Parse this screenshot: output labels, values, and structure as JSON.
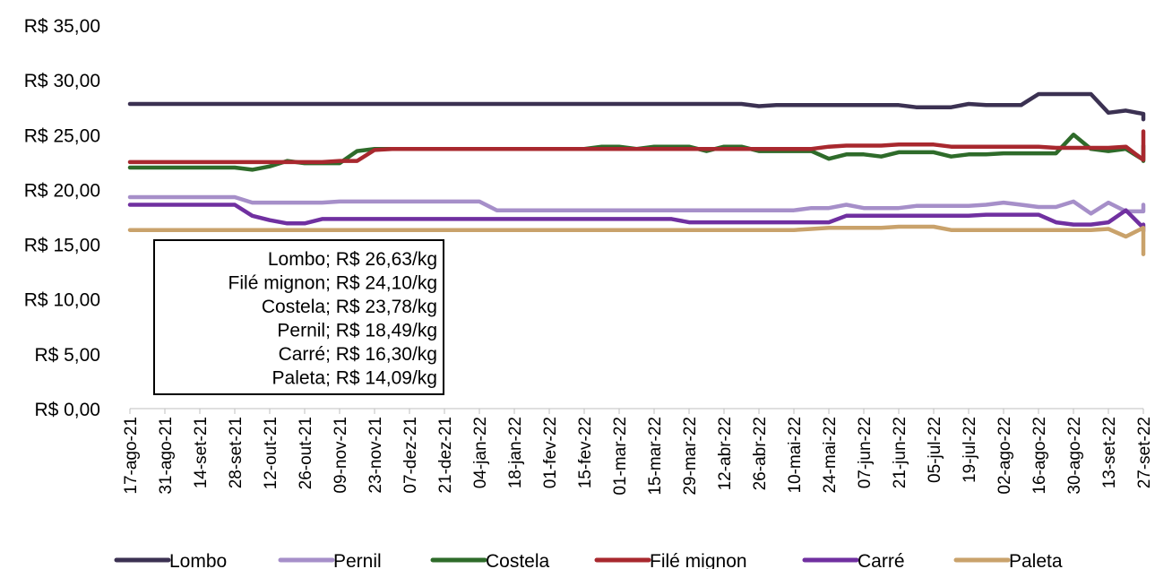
{
  "chart_data": {
    "type": "line",
    "y_format_prefix": "R$ ",
    "ylim": [
      0,
      35
    ],
    "ytick_values": [
      0,
      5,
      10,
      15,
      20,
      25,
      30,
      35
    ],
    "yticks": [
      "R$ 0,00",
      "R$ 5,00",
      "R$ 10,00",
      "R$ 15,00",
      "R$ 20,00",
      "R$ 25,00",
      "R$ 30,00",
      "R$ 35,00"
    ],
    "xtick_labels": [
      "17-ago-21",
      "31-ago-21",
      "14-set-21",
      "28-set-21",
      "12-out-21",
      "26-out-21",
      "09-nov-21",
      "23-nov-21",
      "07-dez-21",
      "21-dez-21",
      "04-jan-22",
      "18-jan-22",
      "01-fev-22",
      "15-fev-22",
      "01-mar-22",
      "15-mar-22",
      "29-mar-22",
      "12-abr-22",
      "26-abr-22",
      "10-mai-22",
      "24-mai-22",
      "07-jun-22",
      "21-jun-22",
      "05-jul-22",
      "19-jul-22",
      "02-ago-22",
      "16-ago-22",
      "30-ago-22",
      "13-set-22",
      "27-set-22"
    ],
    "weeks_per_tick": 2,
    "grid": false,
    "legend_position": "bottom",
    "annotation_lines": [
      "Lombo; R$ 26,63/kg",
      "Filé mignon; R$ 24,10/kg",
      "Costela; R$ 23,78/kg",
      "Pernil; R$ 18,49/kg",
      "Carré; R$ 16,30/kg",
      "Paleta; R$ 14,09/kg"
    ],
    "series": [
      {
        "name": "Lombo",
        "color": "#3B3152",
        "values": [
          27.8,
          27.8,
          27.8,
          27.8,
          27.8,
          27.8,
          27.8,
          27.8,
          27.8,
          27.8,
          27.8,
          27.8,
          27.8,
          27.8,
          27.8,
          27.8,
          27.8,
          27.8,
          27.8,
          27.8,
          27.8,
          27.8,
          27.8,
          27.8,
          27.8,
          27.8,
          27.8,
          27.8,
          27.8,
          27.8,
          27.8,
          27.8,
          27.8,
          27.8,
          27.8,
          27.8,
          27.6,
          27.7,
          27.7,
          27.7,
          27.7,
          27.7,
          27.7,
          27.7,
          27.7,
          27.5,
          27.5,
          27.5,
          27.8,
          27.7,
          27.7,
          27.7,
          28.7,
          28.7,
          28.7,
          28.7,
          27.0,
          27.2,
          26.9,
          26.4,
          26.63
        ]
      },
      {
        "name": "Pernil",
        "color": "#A68FC9",
        "values": [
          19.3,
          19.3,
          19.3,
          19.3,
          19.3,
          19.3,
          19.3,
          18.8,
          18.8,
          18.8,
          18.8,
          18.8,
          18.9,
          18.9,
          18.9,
          18.9,
          18.9,
          18.9,
          18.9,
          18.9,
          18.9,
          18.1,
          18.1,
          18.1,
          18.1,
          18.1,
          18.1,
          18.1,
          18.1,
          18.1,
          18.1,
          18.1,
          18.1,
          18.1,
          18.1,
          18.1,
          18.1,
          18.1,
          18.1,
          18.3,
          18.3,
          18.6,
          18.3,
          18.3,
          18.3,
          18.5,
          18.5,
          18.5,
          18.5,
          18.6,
          18.8,
          18.6,
          18.4,
          18.4,
          18.9,
          17.8,
          18.8,
          18.0,
          18.0,
          18.6,
          18.4,
          18.49
        ]
      },
      {
        "name": "Costela",
        "color": "#2E6B2A",
        "values": [
          22.0,
          22.0,
          22.0,
          22.0,
          22.0,
          22.0,
          22.0,
          21.8,
          22.1,
          22.6,
          22.4,
          22.4,
          22.4,
          23.5,
          23.7,
          23.7,
          23.7,
          23.7,
          23.7,
          23.7,
          23.7,
          23.7,
          23.7,
          23.7,
          23.7,
          23.7,
          23.7,
          23.9,
          23.9,
          23.7,
          23.9,
          23.9,
          23.9,
          23.5,
          23.9,
          23.9,
          23.5,
          23.5,
          23.5,
          23.5,
          22.8,
          23.2,
          23.2,
          23.0,
          23.4,
          23.4,
          23.4,
          23.0,
          23.2,
          23.2,
          23.3,
          23.3,
          23.3,
          23.3,
          25.0,
          23.7,
          23.5,
          23.7,
          22.7,
          23.1,
          23.1,
          22.6,
          24.0,
          23.78
        ]
      },
      {
        "name": "Filé mignon",
        "color": "#A8282E",
        "values": [
          22.5,
          22.5,
          22.5,
          22.5,
          22.5,
          22.5,
          22.5,
          22.5,
          22.5,
          22.5,
          22.5,
          22.5,
          22.6,
          22.6,
          23.6,
          23.7,
          23.7,
          23.7,
          23.7,
          23.7,
          23.7,
          23.7,
          23.7,
          23.7,
          23.7,
          23.7,
          23.7,
          23.7,
          23.7,
          23.7,
          23.7,
          23.7,
          23.7,
          23.7,
          23.7,
          23.7,
          23.7,
          23.7,
          23.7,
          23.7,
          23.9,
          24.0,
          24.0,
          24.0,
          24.1,
          24.1,
          24.1,
          23.9,
          23.9,
          23.9,
          23.9,
          23.9,
          23.9,
          23.8,
          23.8,
          23.8,
          23.8,
          23.9,
          22.7,
          23.3,
          24.6,
          25.3,
          25.3,
          24.1,
          24.1
        ]
      },
      {
        "name": "Carré",
        "color": "#7030A0",
        "values": [
          18.6,
          18.6,
          18.6,
          18.6,
          18.6,
          18.6,
          18.6,
          17.6,
          17.2,
          16.9,
          16.9,
          17.3,
          17.3,
          17.3,
          17.3,
          17.3,
          17.3,
          17.3,
          17.3,
          17.3,
          17.3,
          17.3,
          17.3,
          17.3,
          17.3,
          17.3,
          17.3,
          17.3,
          17.3,
          17.3,
          17.3,
          17.3,
          17.0,
          17.0,
          17.0,
          17.0,
          17.0,
          17.0,
          17.0,
          17.0,
          17.0,
          17.6,
          17.6,
          17.6,
          17.6,
          17.6,
          17.6,
          17.6,
          17.6,
          17.7,
          17.7,
          17.7,
          17.7,
          17.0,
          16.8,
          16.8,
          17.0,
          18.1,
          16.5,
          16.8,
          16.4,
          16.7,
          16.2,
          16.2,
          16.6,
          16.6,
          16.3
        ]
      },
      {
        "name": "Paleta",
        "color": "#C9A26B",
        "values": [
          16.3,
          16.3,
          16.3,
          16.3,
          16.3,
          16.3,
          16.3,
          16.3,
          16.3,
          16.3,
          16.3,
          16.3,
          16.3,
          16.3,
          16.3,
          16.3,
          16.3,
          16.3,
          16.3,
          16.3,
          16.3,
          16.3,
          16.3,
          16.3,
          16.3,
          16.3,
          16.3,
          16.3,
          16.3,
          16.3,
          16.3,
          16.3,
          16.3,
          16.3,
          16.3,
          16.3,
          16.3,
          16.3,
          16.3,
          16.4,
          16.5,
          16.5,
          16.5,
          16.5,
          16.6,
          16.6,
          16.6,
          16.3,
          16.3,
          16.3,
          16.3,
          16.3,
          16.3,
          16.3,
          16.3,
          16.3,
          16.4,
          15.7,
          16.5,
          16.3,
          14.5,
          14.8,
          16.1,
          16.1,
          15.0,
          14.09,
          14.09
        ]
      }
    ]
  }
}
